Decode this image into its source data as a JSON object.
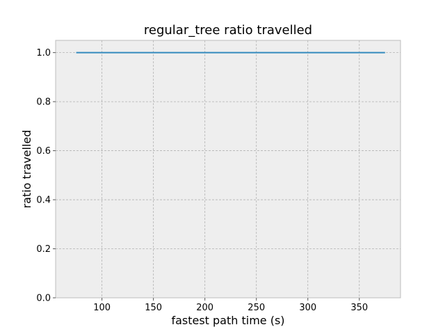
{
  "chart_data": {
    "type": "line",
    "title": "regular_tree ratio travelled",
    "xlabel": "fastest path time (s)",
    "ylabel": "ratio travelled",
    "xlim": [
      55,
      390
    ],
    "ylim": [
      0.0,
      1.05
    ],
    "x_ticks": [
      100,
      150,
      200,
      250,
      300,
      350
    ],
    "y_ticks": [
      0.0,
      0.2,
      0.4,
      0.6,
      0.8,
      1.0
    ],
    "x_tick_labels": [
      "100",
      "150",
      "200",
      "250",
      "300",
      "350"
    ],
    "y_tick_labels": [
      "0.0",
      "0.2",
      "0.4",
      "0.6",
      "0.8",
      "1.0"
    ],
    "grid": true,
    "series": [
      {
        "x": [
          75,
          100,
          150,
          200,
          250,
          300,
          350,
          375
        ],
        "y": [
          1.0,
          1.0,
          1.0,
          1.0,
          1.0,
          1.0,
          1.0,
          1.0
        ],
        "color": "#348ABD"
      }
    ],
    "colors": {
      "plot_background": "#EEEEEE",
      "grid": "#B2B2B2",
      "frame": "#BCBCBC"
    }
  }
}
